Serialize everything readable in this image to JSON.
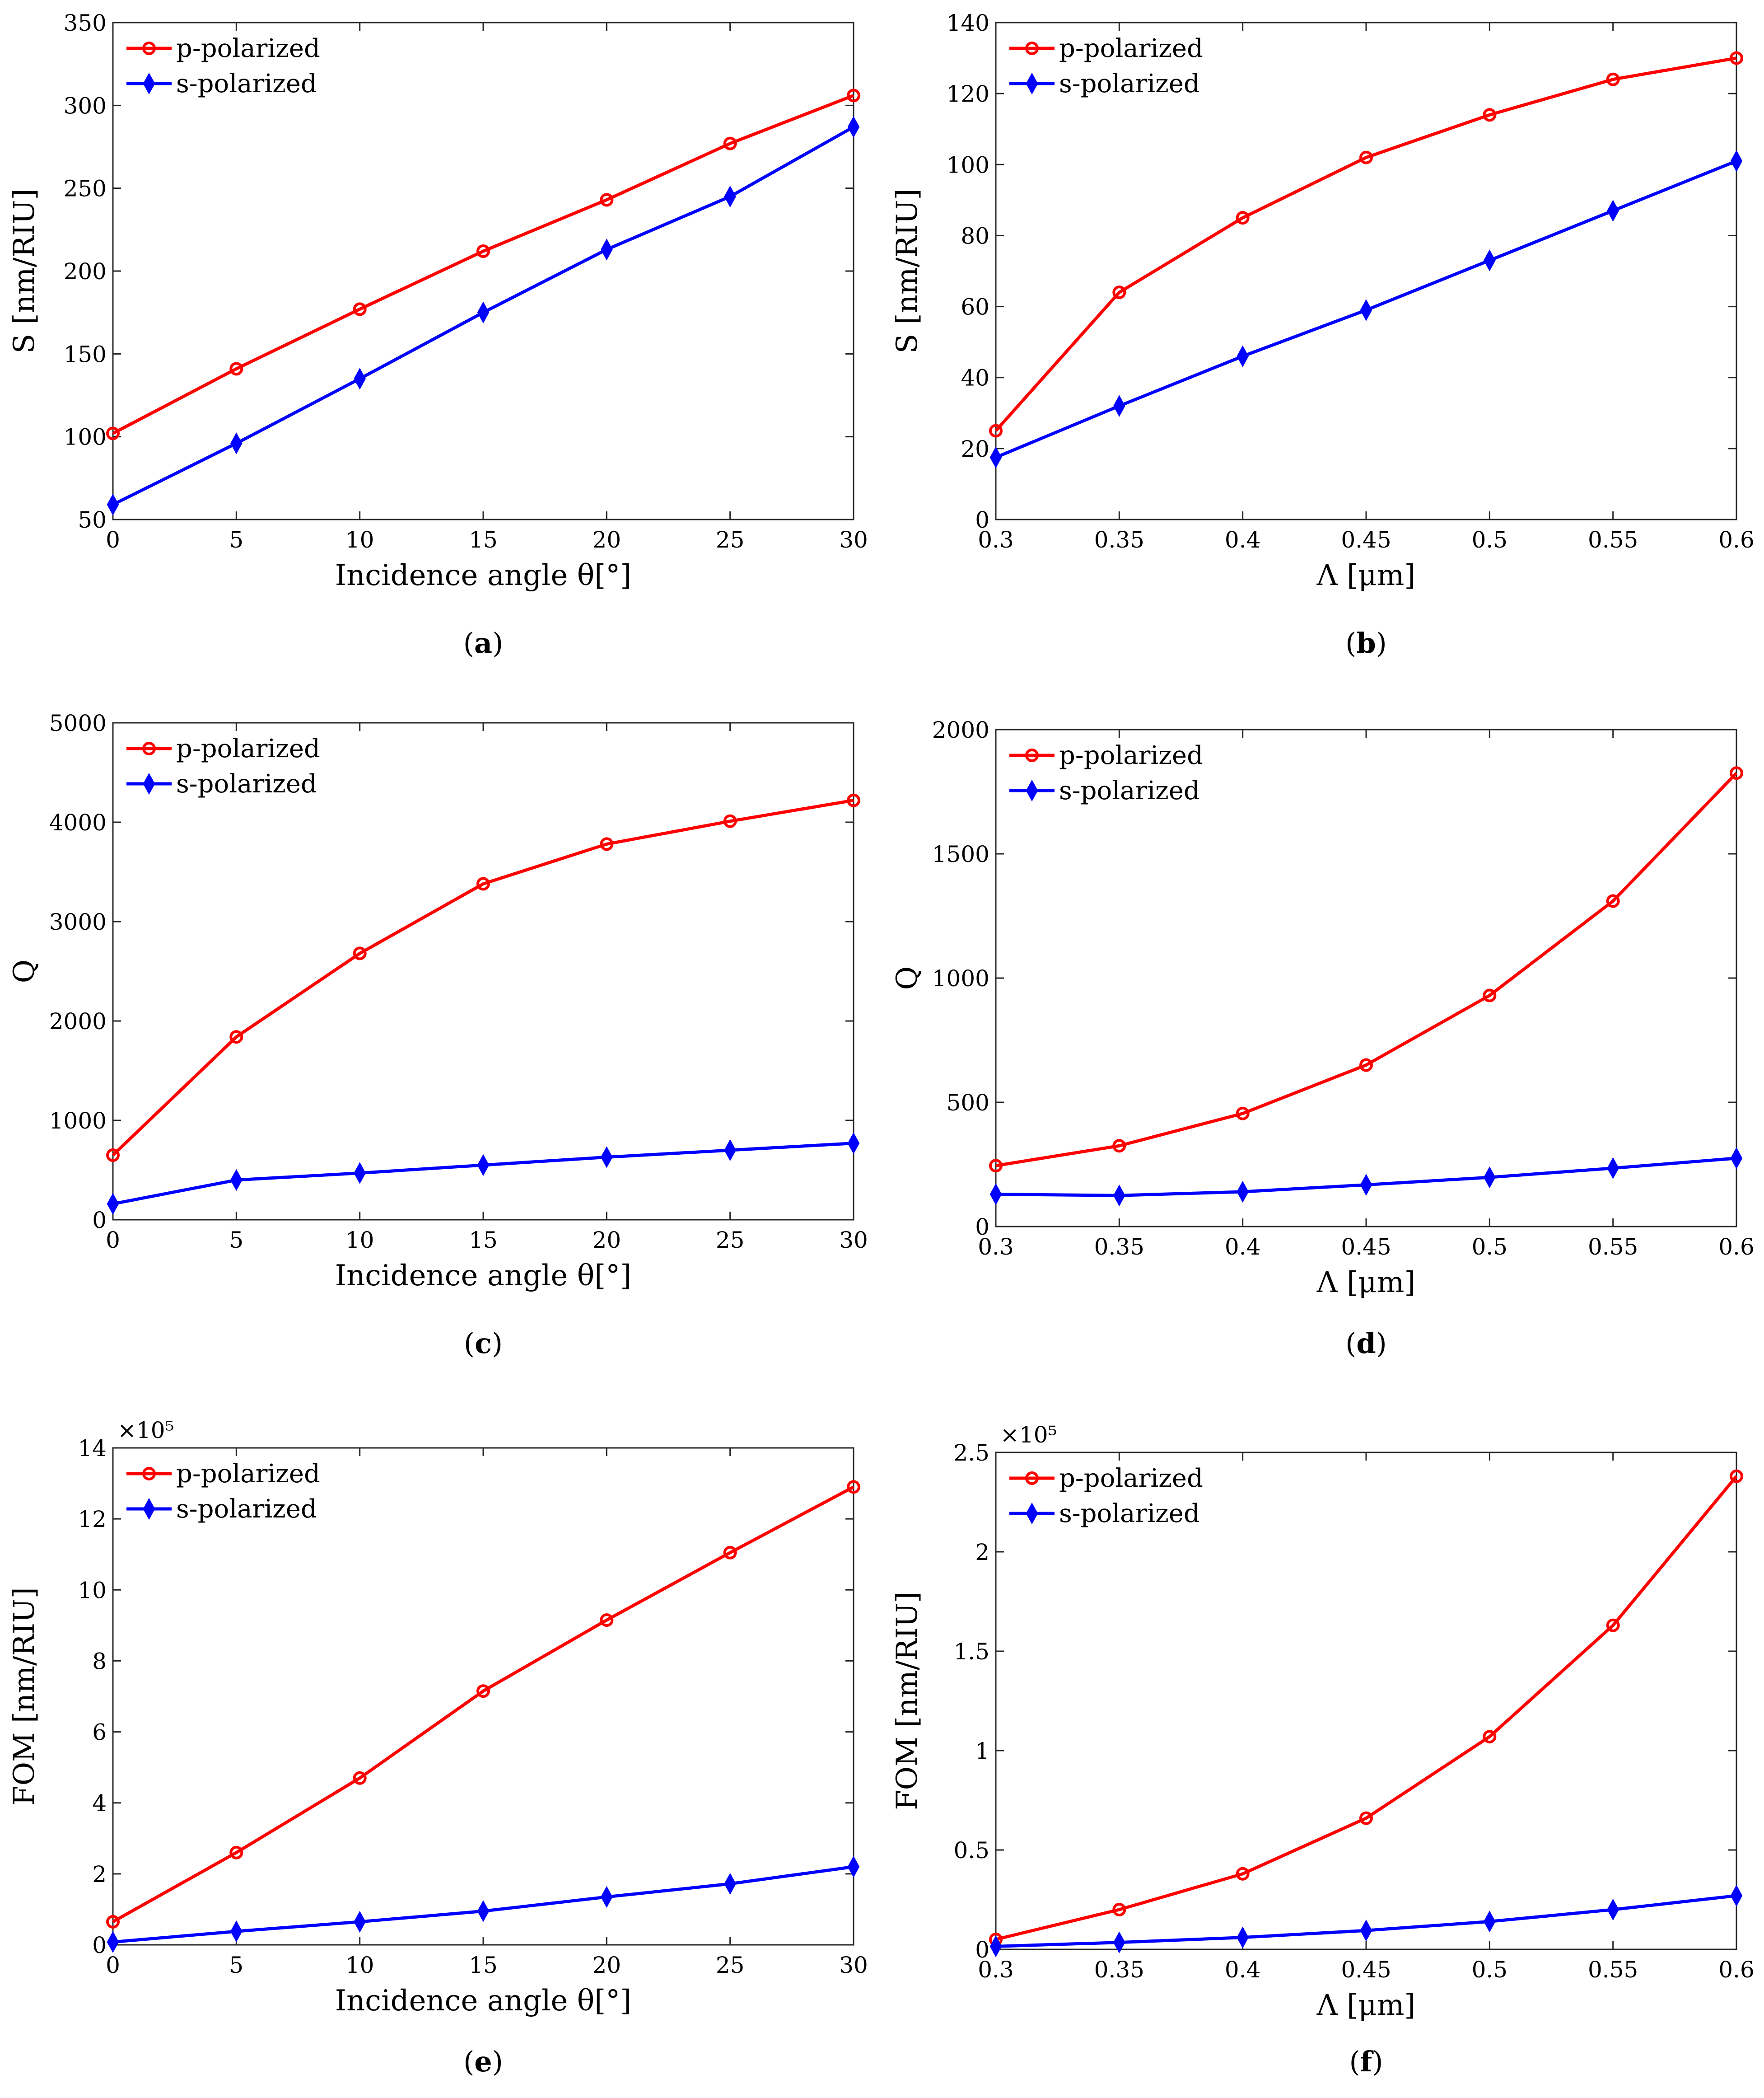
{
  "chart_data": [
    {
      "type": "line",
      "panel": "a",
      "caption": {
        "open": "(",
        "letter": "a",
        "close": ")"
      },
      "xlabel": "Incidence angle θ[°]",
      "ylabel": "S [nm/RIU]",
      "xlim": [
        0,
        30
      ],
      "ylim": [
        50,
        350
      ],
      "xticks": [
        0,
        5,
        10,
        15,
        20,
        25,
        30
      ],
      "xtick_labels": [
        "0",
        "5",
        "10",
        "15",
        "20",
        "25",
        "30"
      ],
      "yticks": [
        50,
        100,
        150,
        200,
        250,
        300,
        350
      ],
      "ytick_labels": [
        "50",
        "100",
        "150",
        "200",
        "250",
        "300",
        "350"
      ],
      "exponent": "",
      "x": [
        0,
        5,
        10,
        15,
        20,
        25,
        30
      ],
      "series": [
        {
          "name": "p-polarized",
          "color": "#ff0000",
          "marker": "circle",
          "values": [
            102,
            141,
            177,
            212,
            243,
            277,
            306
          ]
        },
        {
          "name": "s-polarized",
          "color": "#0000ff",
          "marker": "diamond",
          "values": [
            59,
            96,
            135,
            175,
            213,
            245,
            287
          ]
        }
      ]
    },
    {
      "type": "line",
      "panel": "b",
      "caption": {
        "open": "(",
        "letter": "b",
        "close": ")"
      },
      "xlabel": "Λ [μm]",
      "ylabel": "S [nm/RIU]",
      "xlim": [
        0.3,
        0.6
      ],
      "ylim": [
        0,
        140
      ],
      "xticks": [
        0.3,
        0.35,
        0.4,
        0.45,
        0.5,
        0.55,
        0.6
      ],
      "xtick_labels": [
        "0.3",
        "0.35",
        "0.4",
        "0.45",
        "0.5",
        "0.55",
        "0.6"
      ],
      "yticks": [
        0,
        20,
        40,
        60,
        80,
        100,
        120,
        140
      ],
      "ytick_labels": [
        "0",
        "20",
        "40",
        "60",
        "80",
        "100",
        "120",
        "140"
      ],
      "exponent": "",
      "x": [
        0.3,
        0.35,
        0.4,
        0.45,
        0.5,
        0.55,
        0.6
      ],
      "series": [
        {
          "name": "p-polarized",
          "color": "#ff0000",
          "marker": "circle",
          "values": [
            25,
            64,
            85,
            102,
            114,
            124,
            130
          ]
        },
        {
          "name": "s-polarized",
          "color": "#0000ff",
          "marker": "diamond",
          "values": [
            17.5,
            32,
            46,
            59,
            73,
            87,
            101
          ]
        }
      ]
    },
    {
      "type": "line",
      "panel": "c",
      "caption": {
        "open": "(",
        "letter": "c",
        "close": ")"
      },
      "xlabel": "Incidence angle θ[°]",
      "ylabel": "Q",
      "xlim": [
        0,
        30
      ],
      "ylim": [
        0,
        5000
      ],
      "xticks": [
        0,
        5,
        10,
        15,
        20,
        25,
        30
      ],
      "xtick_labels": [
        "0",
        "5",
        "10",
        "15",
        "20",
        "25",
        "30"
      ],
      "yticks": [
        0,
        1000,
        2000,
        3000,
        4000,
        5000
      ],
      "ytick_labels": [
        "0",
        "1000",
        "2000",
        "3000",
        "4000",
        "5000"
      ],
      "exponent": "",
      "x": [
        0,
        5,
        10,
        15,
        20,
        25,
        30
      ],
      "series": [
        {
          "name": "p-polarized",
          "color": "#ff0000",
          "marker": "circle",
          "values": [
            650,
            1840,
            2680,
            3380,
            3780,
            4010,
            4220
          ]
        },
        {
          "name": "s-polarized",
          "color": "#0000ff",
          "marker": "diamond",
          "values": [
            160,
            400,
            470,
            550,
            630,
            700,
            770
          ]
        }
      ]
    },
    {
      "type": "line",
      "panel": "d",
      "caption": {
        "open": "(",
        "letter": "d",
        "close": ")"
      },
      "xlabel": "Λ [μm]",
      "ylabel": "Q",
      "xlim": [
        0.3,
        0.6
      ],
      "ylim": [
        0,
        2000
      ],
      "xticks": [
        0.3,
        0.35,
        0.4,
        0.45,
        0.5,
        0.55,
        0.6
      ],
      "xtick_labels": [
        "0.3",
        "0.35",
        "0.4",
        "0.45",
        "0.5",
        "0.55",
        "0.6"
      ],
      "yticks": [
        0,
        500,
        1000,
        1500,
        2000
      ],
      "ytick_labels": [
        "0",
        "500",
        "1000",
        "1500",
        "2000"
      ],
      "exponent": "",
      "x": [
        0.3,
        0.35,
        0.4,
        0.45,
        0.5,
        0.55,
        0.6
      ],
      "series": [
        {
          "name": "p-polarized",
          "color": "#ff0000",
          "marker": "circle",
          "values": [
            245,
            325,
            455,
            650,
            930,
            1310,
            1825
          ]
        },
        {
          "name": "s-polarized",
          "color": "#0000ff",
          "marker": "diamond",
          "values": [
            130,
            125,
            140,
            168,
            198,
            235,
            275
          ]
        }
      ]
    },
    {
      "type": "line",
      "panel": "e",
      "caption": {
        "open": "(",
        "letter": "e",
        "close": ")"
      },
      "xlabel": "Incidence angle θ[°]",
      "ylabel": "FOM [nm/RIU]",
      "xlim": [
        0,
        30
      ],
      "ylim": [
        0,
        14
      ],
      "xticks": [
        0,
        5,
        10,
        15,
        20,
        25,
        30
      ],
      "xtick_labels": [
        "0",
        "5",
        "10",
        "15",
        "20",
        "25",
        "30"
      ],
      "yticks": [
        0,
        2,
        4,
        6,
        8,
        10,
        12,
        14
      ],
      "ytick_labels": [
        "0",
        "2",
        "4",
        "6",
        "8",
        "10",
        "12",
        "14"
      ],
      "exponent": "×10⁵",
      "x": [
        0,
        5,
        10,
        15,
        20,
        25,
        30
      ],
      "series": [
        {
          "name": "p-polarized",
          "color": "#ff0000",
          "marker": "circle",
          "values": [
            0.65,
            2.6,
            4.7,
            7.15,
            9.15,
            11.05,
            12.9
          ]
        },
        {
          "name": "s-polarized",
          "color": "#0000ff",
          "marker": "diamond",
          "values": [
            0.08,
            0.38,
            0.65,
            0.95,
            1.35,
            1.72,
            2.2
          ]
        }
      ]
    },
    {
      "type": "line",
      "panel": "f",
      "caption": {
        "open": "(",
        "letter": "f",
        "close": ")"
      },
      "xlabel": "Λ [μm]",
      "ylabel": "FOM [nm/RIU]",
      "xlim": [
        0.3,
        0.6
      ],
      "ylim": [
        0,
        2.5
      ],
      "xticks": [
        0.3,
        0.35,
        0.4,
        0.45,
        0.5,
        0.55,
        0.6
      ],
      "xtick_labels": [
        "0.3",
        "0.35",
        "0.4",
        "0.45",
        "0.5",
        "0.55",
        "0.6"
      ],
      "yticks": [
        0,
        0.5,
        1,
        1.5,
        2,
        2.5
      ],
      "ytick_labels": [
        "0",
        "0.5",
        "1",
        "1.5",
        "2",
        "2.5"
      ],
      "exponent": "×10⁵",
      "x": [
        0.3,
        0.35,
        0.4,
        0.45,
        0.5,
        0.55,
        0.6
      ],
      "series": [
        {
          "name": "p-polarized",
          "color": "#ff0000",
          "marker": "circle",
          "values": [
            0.05,
            0.2,
            0.38,
            0.66,
            1.07,
            1.63,
            2.38
          ]
        },
        {
          "name": "s-polarized",
          "color": "#0000ff",
          "marker": "diamond",
          "values": [
            0.015,
            0.035,
            0.06,
            0.095,
            0.14,
            0.2,
            0.27
          ]
        }
      ]
    }
  ]
}
